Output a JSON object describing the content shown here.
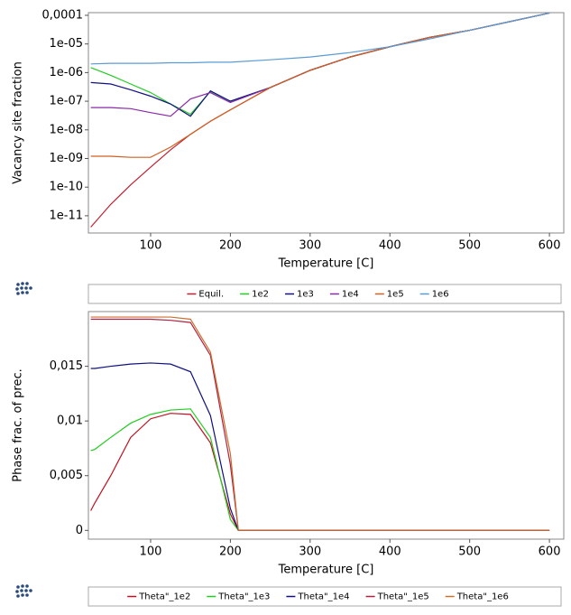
{
  "chart_data": [
    {
      "type": "line",
      "x_label": "Temperature [C]",
      "y_label": "Vacancy site fraction",
      "y_scale": "log",
      "legend_position": "bottom",
      "xlim": [
        22,
        618
      ],
      "xticks": [
        100,
        200,
        300,
        400,
        500,
        600
      ],
      "ylim": [
        2.5e-12,
        0.000124
      ],
      "yticks": [
        {
          "value": 1e-11,
          "label": "1e-11"
        },
        {
          "value": 1e-10,
          "label": "1e-10"
        },
        {
          "value": 1e-09,
          "label": "1e-09"
        },
        {
          "value": 1e-08,
          "label": "1e-08"
        },
        {
          "value": 1e-07,
          "label": "1e-07"
        },
        {
          "value": 1e-06,
          "label": "1e-06"
        },
        {
          "value": 1e-05,
          "label": "1e-05"
        },
        {
          "value": 0.0001,
          "label": "0,0001"
        }
      ],
      "x": [
        25,
        50,
        75,
        100,
        125,
        150,
        175,
        200,
        250,
        300,
        350,
        400,
        450,
        500,
        550,
        600
      ],
      "series": [
        {
          "name": "Equil.",
          "color": "#c02030",
          "values": [
            4e-12,
            2.5e-11,
            1.2e-10,
            5e-10,
            2e-09,
            7e-09,
            2e-08,
            5e-08,
            3e-07,
            1.2e-06,
            3.5e-06,
            8e-06,
            1.7e-05,
            3e-05,
            6e-05,
            0.00012
          ]
        },
        {
          "name": "1e2",
          "color": "#22cc22",
          "values": [
            1.5e-06,
            8e-07,
            4e-07,
            2e-07,
            8e-08,
            3.5e-08,
            2.2e-07,
            1e-07,
            3e-07,
            1.2e-06,
            3.5e-06,
            8e-06,
            1.7e-05,
            3e-05,
            6e-05,
            0.00012
          ]
        },
        {
          "name": "1e3",
          "color": "#101080",
          "values": [
            4.5e-07,
            4e-07,
            2.5e-07,
            1.5e-07,
            8e-08,
            3e-08,
            2.3e-07,
            1e-07,
            3e-07,
            1.2e-06,
            3.5e-06,
            8e-06,
            1.7e-05,
            3e-05,
            6e-05,
            0.00012
          ]
        },
        {
          "name": "1e4",
          "color": "#8a2aa8",
          "values": [
            6e-08,
            6e-08,
            5.5e-08,
            4e-08,
            3e-08,
            1.2e-07,
            2e-07,
            9e-08,
            3e-07,
            1.2e-06,
            3.5e-06,
            8e-06,
            1.7e-05,
            3e-05,
            6e-05,
            0.00012
          ]
        },
        {
          "name": "1e5",
          "color": "#d06020",
          "values": [
            1.2e-09,
            1.2e-09,
            1.1e-09,
            1.1e-09,
            2.5e-09,
            7e-09,
            2e-08,
            5e-08,
            3e-07,
            1.2e-06,
            3.5e-06,
            8e-06,
            1.7e-05,
            3e-05,
            6e-05,
            0.00012
          ]
        },
        {
          "name": "1e6",
          "color": "#5b9bd5",
          "values": [
            2e-06,
            2.1e-06,
            2.1e-06,
            2.1e-06,
            2.2e-06,
            2.2e-06,
            2.3e-06,
            2.3e-06,
            2.8e-06,
            3.5e-06,
            5e-06,
            8e-06,
            1.5e-05,
            3e-05,
            6e-05,
            0.00012
          ]
        }
      ]
    },
    {
      "type": "line",
      "x_label": "Temperature [C]",
      "y_label": "Phase frac. of prec.",
      "y_scale": "linear",
      "legend_position": "bottom",
      "xlim": [
        22,
        618
      ],
      "xticks": [
        100,
        200,
        300,
        400,
        500,
        600
      ],
      "ylim": [
        -0.0008,
        0.02
      ],
      "yticks": [
        0,
        {
          "value": 0.005,
          "label": "0,005"
        },
        {
          "value": 0.01,
          "label": "0,01"
        },
        {
          "value": 0.015,
          "label": "0,015"
        }
      ],
      "x": [
        25,
        30,
        50,
        75,
        100,
        125,
        150,
        175,
        200,
        210,
        250,
        300,
        400,
        500,
        600
      ],
      "series": [
        {
          "name": "Theta\"_1e2",
          "color": "#c01020",
          "values": [
            0.0018,
            0.0025,
            0.005,
            0.0085,
            0.0102,
            0.0107,
            0.0106,
            0.008,
            0.0015,
            0,
            0,
            0,
            0,
            0,
            0
          ]
        },
        {
          "name": "Theta\"_1e3",
          "color": "#22cc22",
          "values": [
            0.0073,
            0.0074,
            0.0085,
            0.0098,
            0.0106,
            0.011,
            0.0111,
            0.0085,
            0.001,
            0,
            0,
            0,
            0,
            0,
            0
          ]
        },
        {
          "name": "Theta\"_1e4",
          "color": "#101080",
          "values": [
            0.0148,
            0.0148,
            0.015,
            0.0152,
            0.0153,
            0.0152,
            0.0145,
            0.0105,
            0.002,
            0,
            0,
            0,
            0,
            0,
            0
          ]
        },
        {
          "name": "Theta\"_1e5",
          "color": "#b02040",
          "values": [
            0.0193,
            0.0193,
            0.0193,
            0.0193,
            0.0193,
            0.0192,
            0.019,
            0.016,
            0.006,
            0,
            0,
            0,
            0,
            0,
            0
          ]
        },
        {
          "name": "Theta\"_1e6",
          "color": "#c87030",
          "values": [
            0.0195,
            0.0195,
            0.0195,
            0.0195,
            0.0195,
            0.0195,
            0.0193,
            0.0163,
            0.007,
            0,
            0,
            0,
            0,
            0,
            0
          ]
        }
      ]
    }
  ]
}
